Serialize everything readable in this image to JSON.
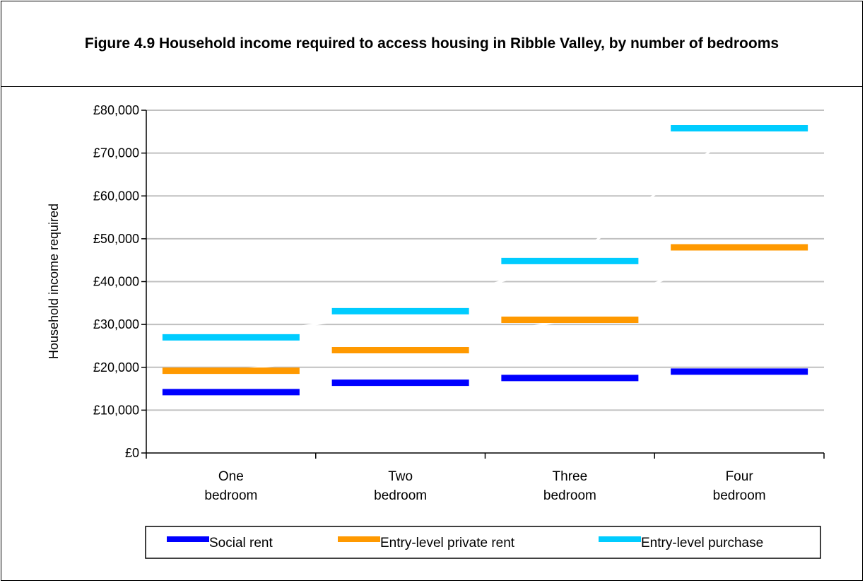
{
  "title": "Figure 4.9 Household income required to access housing in Ribble Valley, by number of bedrooms",
  "chart_data": {
    "type": "line",
    "title": "Figure 4.9 Household income required to access housing in Ribble Valley, by number of bedrooms",
    "ylabel": "Household income required",
    "xlabel": "",
    "categories": [
      [
        "One",
        "bedroom"
      ],
      [
        "Two",
        "bedroom"
      ],
      [
        "Three",
        "bedroom"
      ],
      [
        "Four",
        "bedroom"
      ]
    ],
    "ylim": [
      0,
      80000
    ],
    "yticks": [
      "£0",
      "£10,000",
      "£20,000",
      "£30,000",
      "£40,000",
      "£50,000",
      "£60,000",
      "£70,000",
      "£80,000"
    ],
    "grid": true,
    "legend_position": "bottom",
    "series": [
      {
        "name": "Social rent",
        "color": "#0000ff",
        "values": [
          14200,
          16400,
          17500,
          19000
        ]
      },
      {
        "name": "Entry-level private rent",
        "color": "#ff9900",
        "values": [
          19200,
          24000,
          31100,
          48000
        ]
      },
      {
        "name": "Entry-level purchase",
        "color": "#00ccff",
        "values": [
          27000,
          33100,
          44800,
          75800
        ]
      }
    ]
  }
}
